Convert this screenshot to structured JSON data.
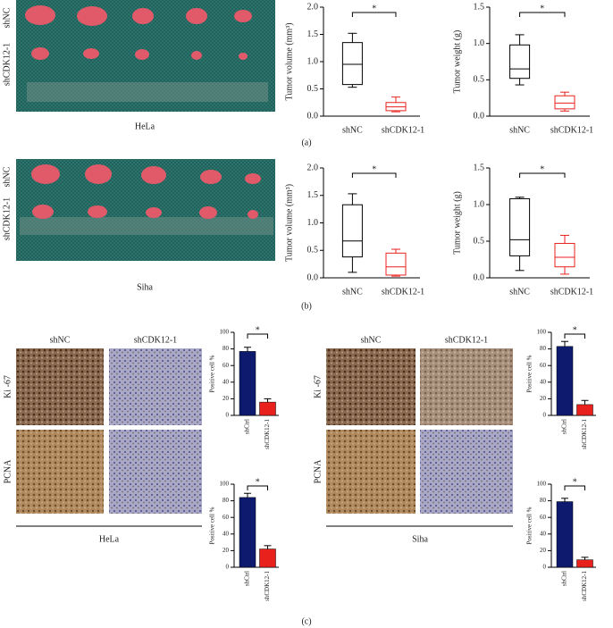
{
  "panels": [
    "(a)",
    "(b)",
    "(c)"
  ],
  "photos": [
    {
      "caption": "HeLa",
      "rows": [
        "shNC",
        "shCDK12-1"
      ]
    },
    {
      "caption": "Siha",
      "rows": [
        "shNC",
        "shCDK12-1"
      ]
    }
  ],
  "micrographs": [
    {
      "caption": "HeLa",
      "columns": [
        "shNC",
        "shCDK12-1"
      ],
      "rows": [
        "Ki -67",
        "PCNA"
      ]
    },
    {
      "caption": "Siha",
      "columns": [
        "shNC",
        "shCDK12-1"
      ],
      "rows": [
        "Ki -67",
        "PCNA"
      ]
    }
  ],
  "chart_data": [
    {
      "type": "box",
      "y_label": "Tumor volume (mm³)",
      "annotation": "*",
      "ylim": [
        0,
        2.0
      ],
      "yticks": [
        {
          "value": 0,
          "label": "0.0"
        },
        0.5,
        {
          "value": 1,
          "label": "1.0"
        },
        1.5,
        {
          "value": 2,
          "label": "2.0"
        }
      ],
      "boxes": [
        {
          "name": "shNC",
          "color": "#000000",
          "min": 0.53,
          "q1": 0.58,
          "median": 0.95,
          "q3": 1.35,
          "max": 1.52
        },
        {
          "name": "shCDK12-1",
          "color": "#e8211d",
          "min": 0.08,
          "q1": 0.1,
          "median": 0.17,
          "q3": 0.25,
          "max": 0.35
        }
      ]
    },
    {
      "type": "box",
      "y_label": "Tumor weight (g)",
      "annotation": "*",
      "ylim": [
        0,
        1.5
      ],
      "yticks": [
        {
          "value": 0,
          "label": "0.0"
        },
        0.5,
        {
          "value": 1,
          "label": "1.0"
        },
        1.5
      ],
      "boxes": [
        {
          "name": "shNC",
          "color": "#000000",
          "min": 0.43,
          "q1": 0.52,
          "median": 0.65,
          "q3": 0.98,
          "max": 1.12
        },
        {
          "name": "shCDK12-1",
          "color": "#e8211d",
          "min": 0.07,
          "q1": 0.1,
          "median": 0.18,
          "q3": 0.28,
          "max": 0.33
        }
      ]
    },
    {
      "type": "box",
      "y_label": "Tumor volume (mm³)",
      "annotation": "*",
      "ylim": [
        0,
        2.0
      ],
      "yticks": [
        {
          "value": 0,
          "label": "0.0"
        },
        0.5,
        {
          "value": 1,
          "label": "1.0"
        },
        1.5,
        {
          "value": 2,
          "label": "2.0"
        }
      ],
      "boxes": [
        {
          "name": "shNC",
          "color": "#000000",
          "min": 0.1,
          "q1": 0.38,
          "median": 0.67,
          "q3": 1.33,
          "max": 1.53
        },
        {
          "name": "shCDK12-1",
          "color": "#e8211d",
          "min": 0.03,
          "q1": 0.05,
          "median": 0.2,
          "q3": 0.45,
          "max": 0.52
        }
      ]
    },
    {
      "type": "box",
      "y_label": "Tumor weight (g)",
      "annotation": "*",
      "ylim": [
        0,
        1.5
      ],
      "yticks": [
        {
          "value": 0,
          "label": "0.0"
        },
        0.5,
        {
          "value": 1,
          "label": "1.0"
        },
        1.5
      ],
      "boxes": [
        {
          "name": "shNC",
          "color": "#000000",
          "min": 0.1,
          "q1": 0.3,
          "median": 0.52,
          "q3": 1.08,
          "max": 1.1
        },
        {
          "name": "shCDK12-1",
          "color": "#e8211d",
          "min": 0.05,
          "q1": 0.15,
          "median": 0.28,
          "q3": 0.47,
          "max": 0.58
        }
      ]
    },
    {
      "type": "bar",
      "y_label": "Positive cell %",
      "annotation": "*",
      "ylim": [
        0,
        100
      ],
      "yticks": [
        0,
        20,
        40,
        60,
        80,
        100
      ],
      "categories": [
        "shCtrl",
        "shCDK12-1"
      ],
      "colors": [
        "#0d1a6e",
        "#e8211d"
      ],
      "values": [
        77,
        16
      ],
      "errors": [
        5,
        4
      ]
    },
    {
      "type": "bar",
      "y_label": "Positive cell %",
      "annotation": "*",
      "ylim": [
        0,
        100
      ],
      "yticks": [
        0,
        20,
        40,
        60,
        80,
        100
      ],
      "categories": [
        "shCtrl",
        "shCDK12-1"
      ],
      "colors": [
        "#0d1a6e",
        "#e8211d"
      ],
      "values": [
        84,
        22
      ],
      "errors": [
        5,
        4
      ]
    },
    {
      "type": "bar",
      "y_label": "Positive cell %",
      "annotation": "*",
      "ylim": [
        0,
        100
      ],
      "yticks": [
        0,
        20,
        40,
        60,
        80,
        100
      ],
      "categories": [
        "shCtrl",
        "shCDK12-1"
      ],
      "colors": [
        "#0d1a6e",
        "#e8211d"
      ],
      "values": [
        83,
        13
      ],
      "errors": [
        6,
        5
      ]
    },
    {
      "type": "bar",
      "y_label": "Positive cell %",
      "annotation": "*",
      "ylim": [
        0,
        100
      ],
      "yticks": [
        0,
        20,
        40,
        60,
        80,
        100
      ],
      "categories": [
        "shCtrl",
        "shCDK12-1"
      ],
      "colors": [
        "#0d1a6e",
        "#e8211d"
      ],
      "values": [
        79,
        9
      ],
      "errors": [
        4,
        3
      ]
    }
  ]
}
